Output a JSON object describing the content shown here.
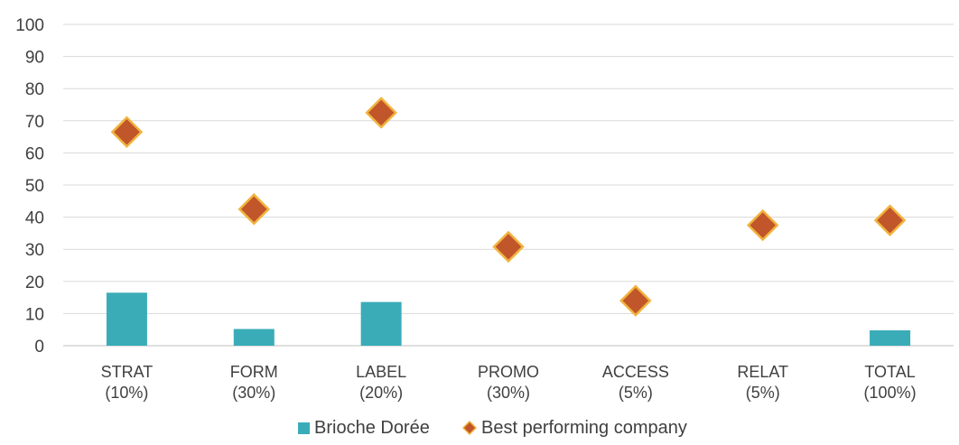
{
  "chart_data": {
    "type": "bar",
    "categories": [
      [
        "STRAT",
        "(10%)"
      ],
      [
        "FORM",
        "(30%)"
      ],
      [
        "LABEL",
        "(20%)"
      ],
      [
        "PROMO",
        "(30%)"
      ],
      [
        "ACCESS",
        "(5%)"
      ],
      [
        "RELAT",
        "(5%)"
      ],
      [
        "TOTAL",
        "(100%)"
      ]
    ],
    "series": [
      {
        "name": "Brioche Dorée",
        "kind": "bar",
        "color": "#3aacb8",
        "values": [
          16.5,
          5.2,
          13.6,
          0,
          0,
          0,
          4.8
        ]
      },
      {
        "name": "Best performing company",
        "kind": "scatter",
        "marker": "diamond",
        "color": "#c0562a",
        "edge_color": "#f2b33d",
        "values": [
          66.5,
          42.5,
          72.5,
          30.8,
          14.0,
          37.5,
          39.0
        ]
      }
    ],
    "yticks": [
      0,
      10,
      20,
      30,
      40,
      50,
      60,
      70,
      80,
      90,
      100
    ],
    "ylim": [
      0,
      100
    ],
    "grid": true,
    "legend_position": "bottom-center"
  }
}
